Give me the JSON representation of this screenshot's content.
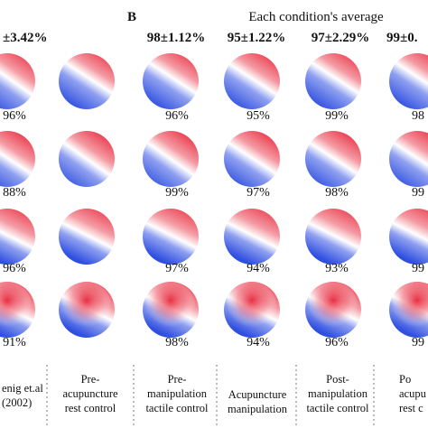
{
  "panel_letter": "B",
  "panel_title": "Each condition's average",
  "column_averages": [
    "±3.42%",
    "",
    "98±1.12%",
    "95±1.22%",
    "97±2.29%",
    "99±0."
  ],
  "row_percentages": [
    [
      "96%",
      "",
      "96%",
      "95%",
      "99%",
      "98"
    ],
    [
      "88%",
      "",
      "99%",
      "97%",
      "98%",
      "99"
    ],
    [
      "96%",
      "",
      "97%",
      "94%",
      "93%",
      "99"
    ],
    [
      "91%",
      "",
      "98%",
      "94%",
      "96%",
      "99"
    ]
  ],
  "column_labels": [
    [
      "enig et.al",
      "(2002)"
    ],
    [
      "Pre-",
      "acupuncture",
      "rest control"
    ],
    [
      "Pre-",
      "manipulation",
      "tactile control"
    ],
    [
      "Acupuncture",
      "manipulation"
    ],
    [
      "Post-",
      "manipulation",
      "tactile control"
    ],
    [
      "Po",
      "acupu",
      "rest c"
    ]
  ],
  "colors": {
    "positive": "#e8283c",
    "neutral": "#ffffff",
    "negative": "#2f4fe0"
  }
}
